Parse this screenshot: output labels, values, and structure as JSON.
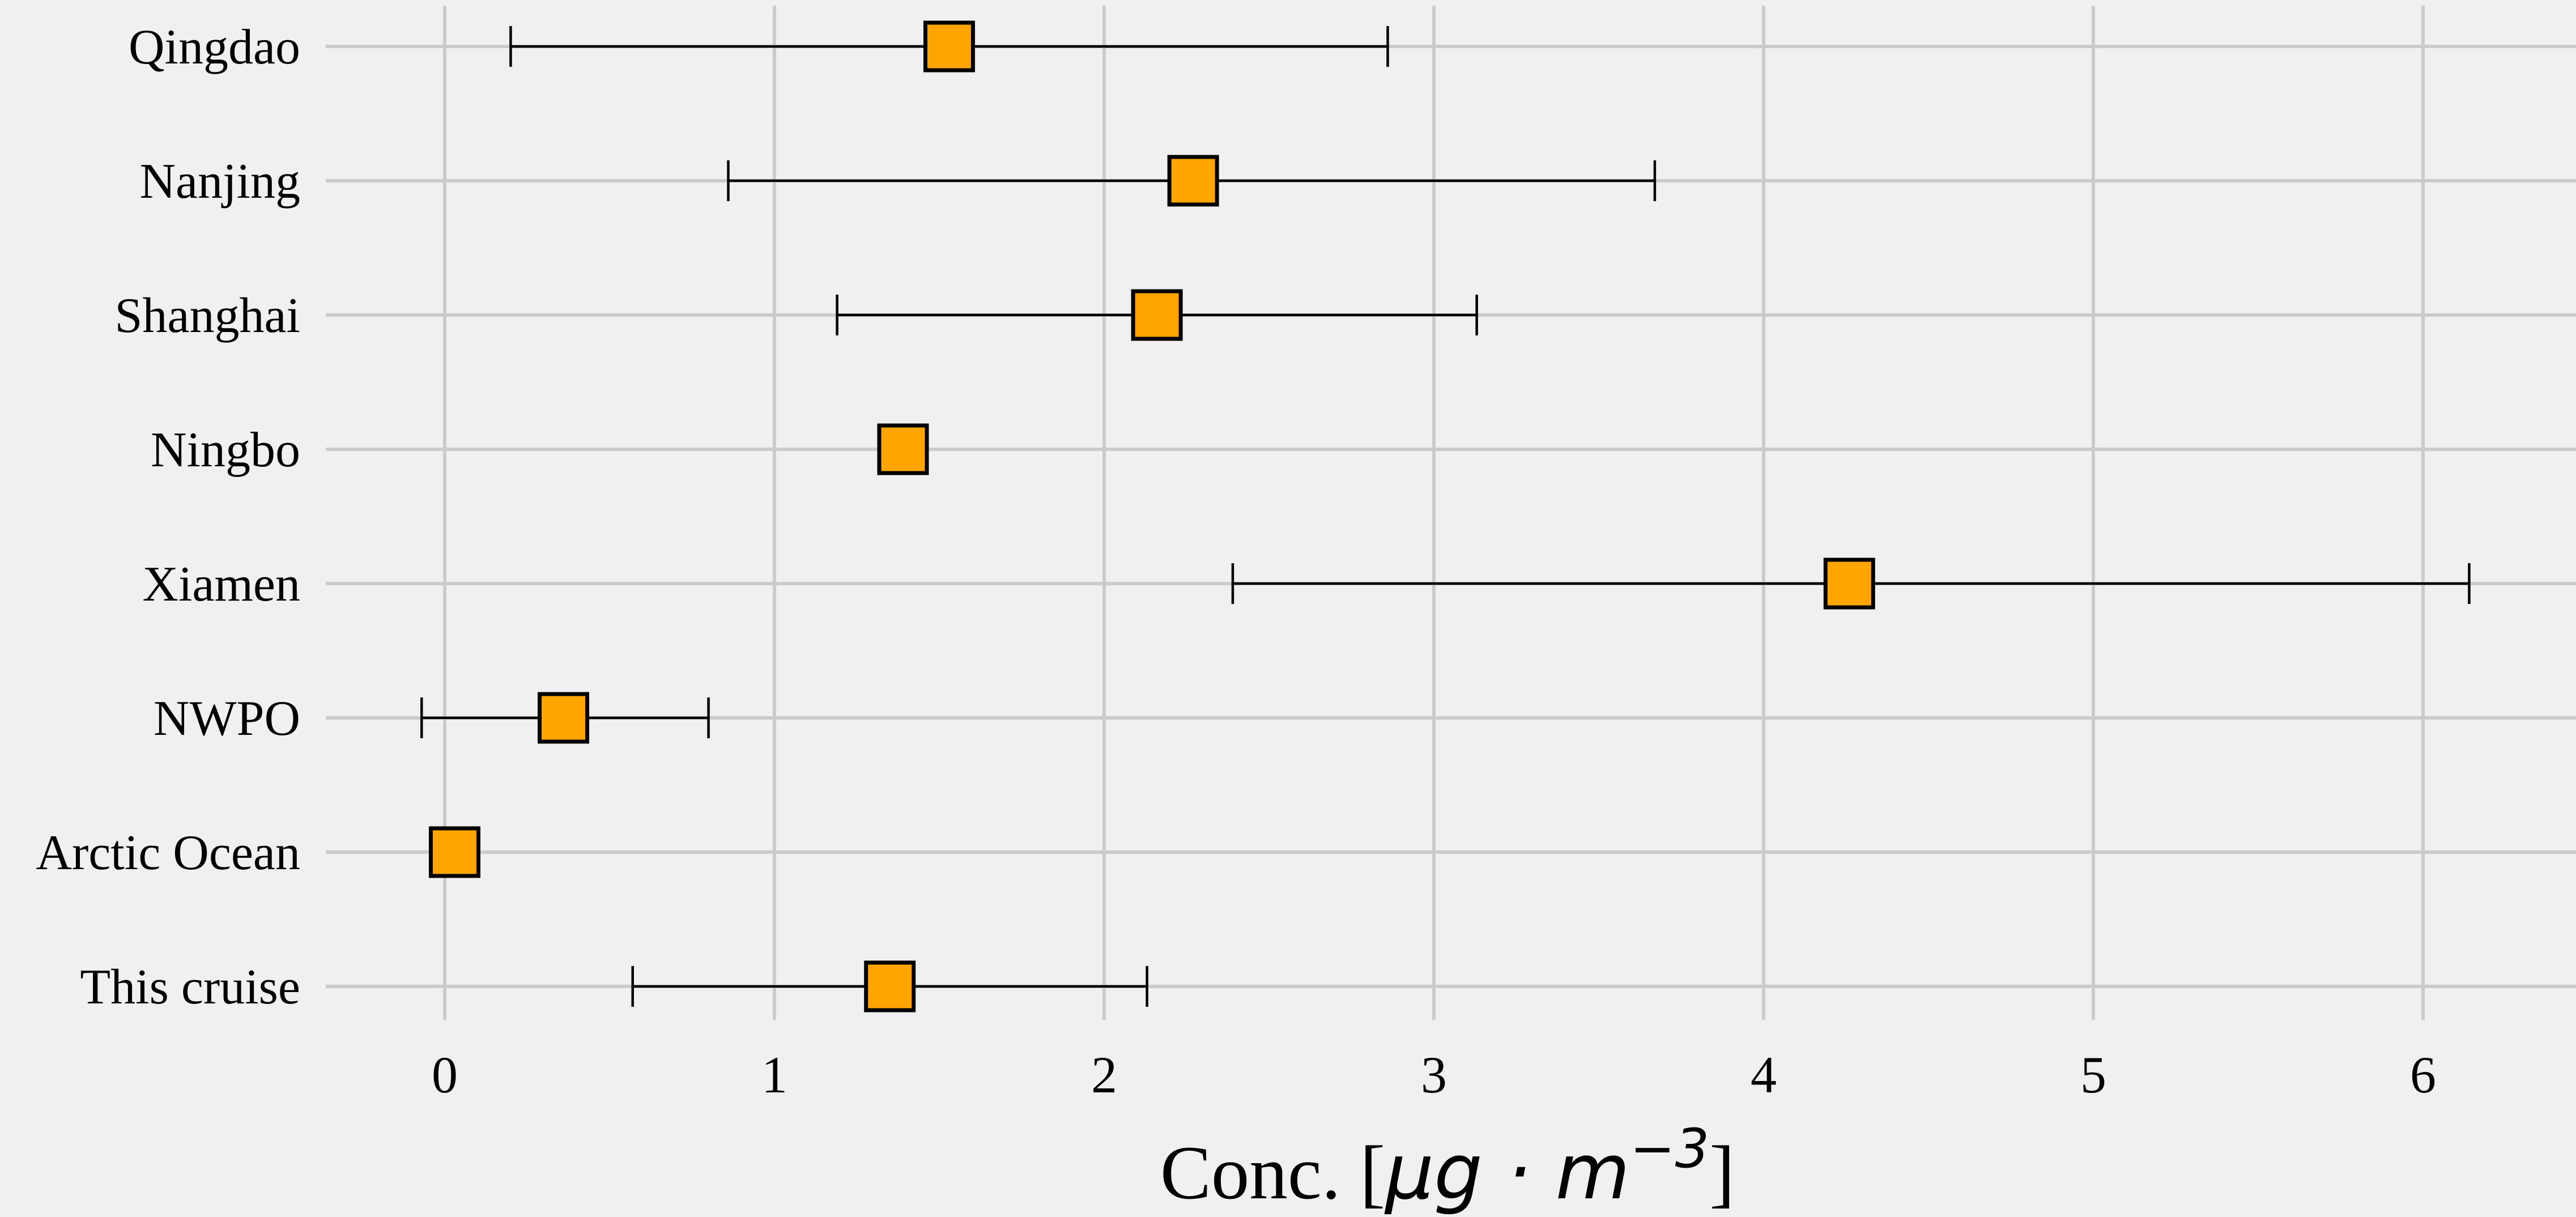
{
  "chart_data": {
    "type": "scatter",
    "orientation": "horizontal",
    "title": "",
    "xlabel": {
      "prefix": "Conc. [",
      "unit_main": "μg · m",
      "unit_exponent": "−3",
      "suffix": "]"
    },
    "ylabel": "",
    "xlim": [
      -0.36,
      6.45
    ],
    "xticks": [
      0,
      1,
      2,
      3,
      4,
      5,
      6
    ],
    "xtick_labels": [
      "0",
      "1",
      "2",
      "3",
      "4",
      "5",
      "6"
    ],
    "grid": true,
    "marker": "square",
    "categories": [
      "Qingdao",
      "Nanjing",
      "Shanghai",
      "Ningbo",
      "Xiamen",
      "NWPO",
      "Arctic Ocean",
      "This cruise"
    ],
    "values": [
      1.53,
      2.27,
      2.16,
      1.39,
      4.26,
      0.36,
      0.03,
      1.35
    ],
    "error_low": [
      0.2,
      0.86,
      1.19,
      null,
      2.39,
      -0.07,
      null,
      0.57
    ],
    "error_high": [
      2.86,
      3.67,
      3.13,
      null,
      6.14,
      0.8,
      null,
      2.13
    ],
    "colors": {
      "background": "#f0f0f0",
      "grid": "#cbcbcb",
      "marker_fill": "#ffa500",
      "marker_edge": "#000000",
      "errorbar": "#000000"
    }
  }
}
